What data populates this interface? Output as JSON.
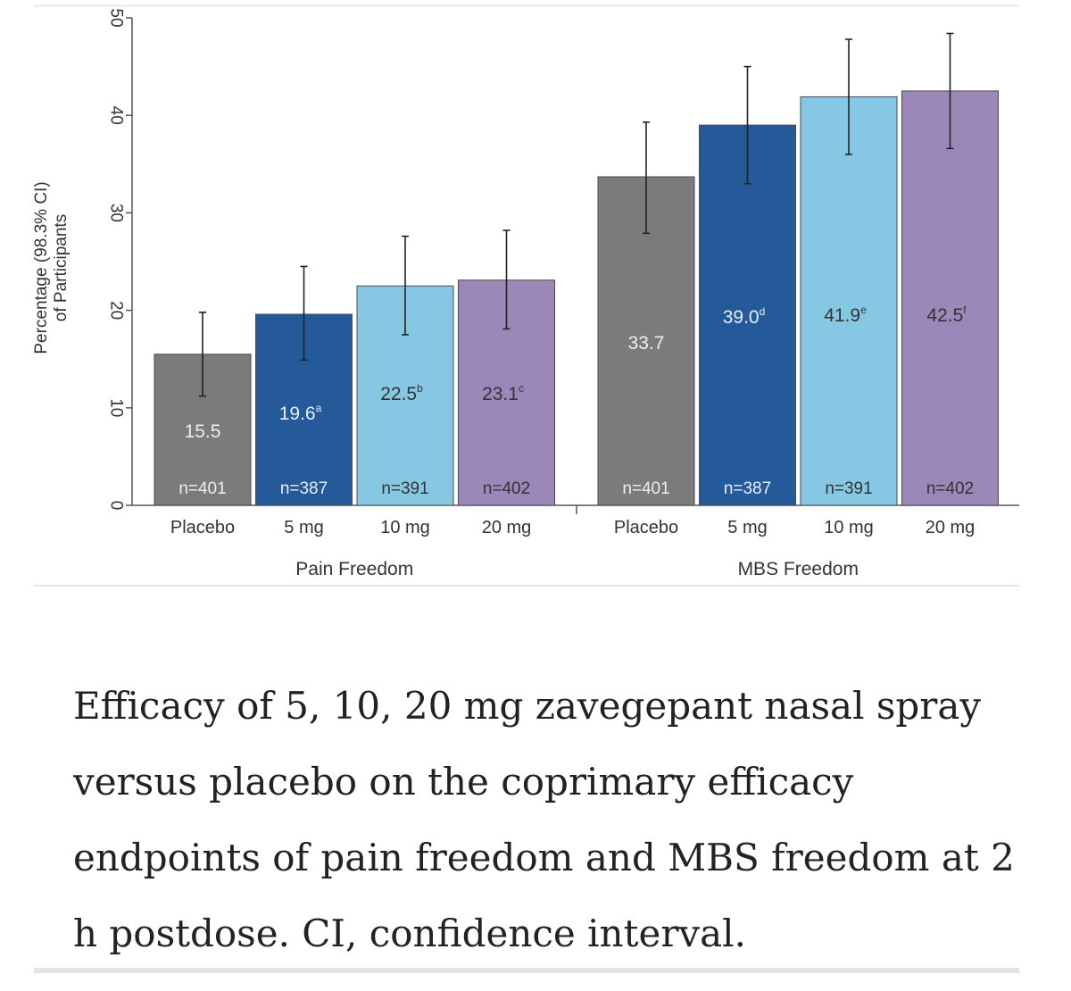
{
  "chart_data": {
    "type": "bar",
    "title": "",
    "ylabel_line1": "Percentage (98.3% CI)",
    "ylabel_line2": "of Participants",
    "ylim": [
      0,
      50
    ],
    "yticks": [
      0,
      10,
      20,
      30,
      40,
      50
    ],
    "groups": [
      {
        "name": "Pain Freedom",
        "bars": [
          {
            "category": "Placebo",
            "value": 15.5,
            "label": "15.5",
            "sup": "",
            "ci": [
              11.2,
              19.8
            ],
            "n": "n=401",
            "color": "#7b7b7b",
            "label_color": "#eeeeee"
          },
          {
            "category": "5 mg",
            "value": 19.6,
            "label": "19.6",
            "sup": "a",
            "ci": [
              14.9,
              24.5
            ],
            "n": "n=387",
            "color": "#245a9a",
            "label_color": "#e8eef8"
          },
          {
            "category": "10 mg",
            "value": 22.5,
            "label": "22.5",
            "sup": "b",
            "ci": [
              17.5,
              27.6
            ],
            "n": "n=391",
            "color": "#86c8e3",
            "label_color": "#333333"
          },
          {
            "category": "20 mg",
            "value": 23.1,
            "label": "23.1",
            "sup": "c",
            "ci": [
              18.1,
              28.2
            ],
            "n": "n=402",
            "color": "#9b88b9",
            "label_color": "#333333"
          }
        ]
      },
      {
        "name": "MBS Freedom",
        "bars": [
          {
            "category": "Placebo",
            "value": 33.7,
            "label": "33.7",
            "sup": "",
            "ci": [
              27.9,
              39.3
            ],
            "n": "n=401",
            "color": "#7b7b7b",
            "label_color": "#eeeeee"
          },
          {
            "category": "5 mg",
            "value": 39.0,
            "label": "39.0",
            "sup": "d",
            "ci": [
              33.0,
              45.0
            ],
            "n": "n=387",
            "color": "#245a9a",
            "label_color": "#e8eef8"
          },
          {
            "category": "10 mg",
            "value": 41.9,
            "label": "41.9",
            "sup": "e",
            "ci": [
              36.0,
              47.8
            ],
            "n": "n=391",
            "color": "#86c8e3",
            "label_color": "#333333"
          },
          {
            "category": "20 mg",
            "value": 42.5,
            "label": "42.5",
            "sup": "f",
            "ci": [
              36.6,
              48.4
            ],
            "n": "n=402",
            "color": "#9b88b9",
            "label_color": "#333333"
          }
        ]
      }
    ]
  },
  "caption": "Efficacy of 5, 10, 20 mg zavegepant nasal spray versus placebo on the coprimary efficacy endpoints of pain freedom and MBS freedom at 2 h postdose. CI, confidence interval."
}
